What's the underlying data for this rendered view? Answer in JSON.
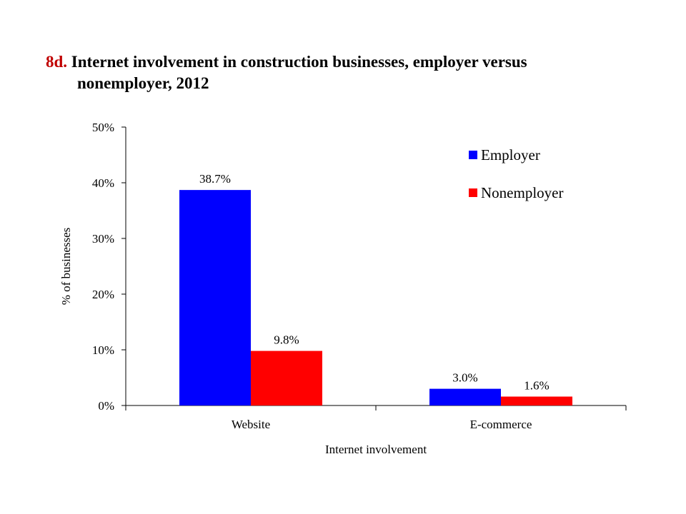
{
  "title": {
    "number": "8d.",
    "line1": "Internet involvement in construction businesses, employer versus",
    "line2": "nonemployer, 2012"
  },
  "colors": {
    "employer": "#0000ff",
    "nonemployer": "#ff0000",
    "title_number": "#c00000"
  },
  "chart_data": {
    "type": "bar",
    "title": "Internet involvement in construction businesses, employer versus nonemployer, 2012",
    "categories": [
      "Website",
      "E-commerce"
    ],
    "series": [
      {
        "name": "Employer",
        "values": [
          38.7,
          3.0
        ],
        "labels": [
          "38.7%",
          "3.0%"
        ],
        "color": "#0000ff"
      },
      {
        "name": "Nonemployer",
        "values": [
          9.8,
          1.6
        ],
        "labels": [
          "9.8%",
          "1.6%"
        ],
        "color": "#ff0000"
      }
    ],
    "xlabel": "Internet  involvement",
    "ylabel": "% of businesses",
    "ylim": [
      0,
      50
    ],
    "yticks": [
      0,
      10,
      20,
      30,
      40,
      50
    ],
    "ytick_labels": [
      "0%",
      "10%",
      "20%",
      "30%",
      "40%",
      "50%"
    ],
    "grid": false,
    "legend_position": "top-right"
  }
}
